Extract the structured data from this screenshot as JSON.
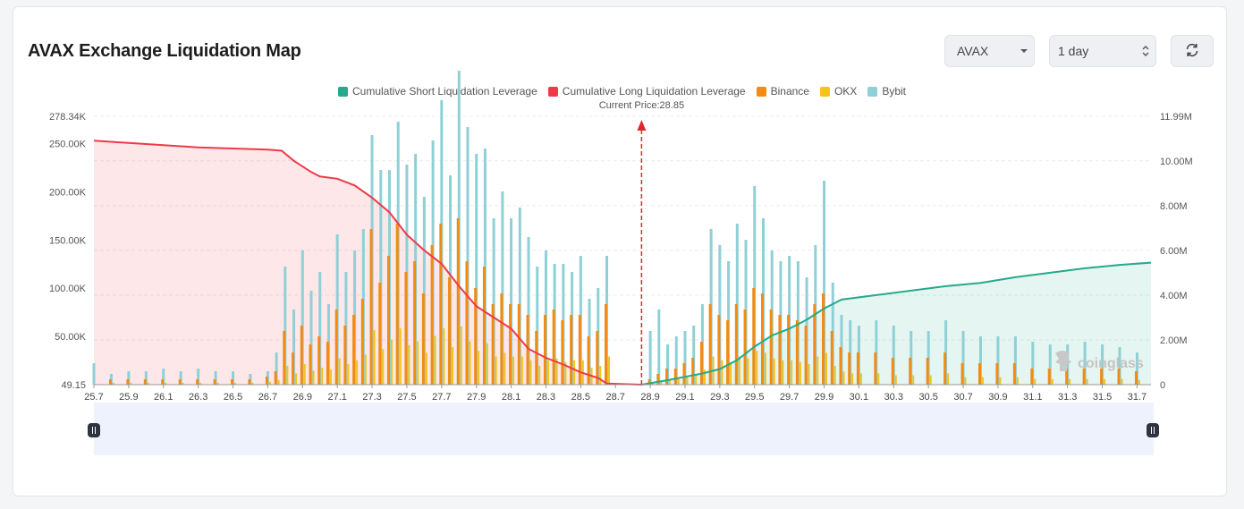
{
  "header": {
    "title": "AVAX Exchange Liquidation Map",
    "coin_select": "AVAX",
    "timeframe_select": "1 day",
    "refresh_icon": "refresh-icon",
    "coin_caret_icon": "caret-down-icon",
    "time_caret_icon": "up-down-chevron-icon"
  },
  "watermark": "coinglass",
  "colors": {
    "short": "#26a98c",
    "long": "#ee3a47",
    "binance": "#f38b12",
    "okx": "#f2c41c",
    "bybit": "#8fd0d6",
    "current_price": "#e0262f"
  },
  "chart_data": {
    "type": "bar",
    "title": "",
    "legend": [
      {
        "key": "short",
        "label": "Cumulative Short Liquidation Leverage"
      },
      {
        "key": "long",
        "label": "Cumulative Long Liquidation Leverage"
      },
      {
        "key": "binance",
        "label": "Binance"
      },
      {
        "key": "okx",
        "label": "OKX"
      },
      {
        "key": "bybit",
        "label": "Bybit"
      }
    ],
    "legend_position": "top-center",
    "current_price": 28.85,
    "current_price_label": "Current Price:28.85",
    "x_range": [
      25.7,
      31.78
    ],
    "x_ticks": [
      "25.7",
      "25.9",
      "26.1",
      "26.3",
      "26.5",
      "26.7",
      "26.9",
      "27.1",
      "27.3",
      "27.5",
      "27.7",
      "27.9",
      "28.1",
      "28.3",
      "28.5",
      "28.7",
      "28.9",
      "29.1",
      "29.3",
      "29.5",
      "29.7",
      "29.9",
      "30.1",
      "30.3",
      "30.5",
      "30.7",
      "30.9",
      "31.1",
      "31.3",
      "31.5",
      "31.7"
    ],
    "y_left_range": [
      49.15,
      278340
    ],
    "y_left_ticks": [
      {
        "v": 278340,
        "label": "278.34K"
      },
      {
        "v": 250000,
        "label": "250.00K"
      },
      {
        "v": 200000,
        "label": "200.00K"
      },
      {
        "v": 150000,
        "label": "150.00K"
      },
      {
        "v": 100000,
        "label": "100.00K"
      },
      {
        "v": 50000,
        "label": "50.00K"
      },
      {
        "v": 49.15,
        "label": "49.15"
      }
    ],
    "y_right_range": [
      0,
      11990000
    ],
    "y_right_ticks": [
      {
        "v": 11990000,
        "label": "11.99M"
      },
      {
        "v": 10000000,
        "label": "10.00M"
      },
      {
        "v": 8000000,
        "label": "8.00M"
      },
      {
        "v": 6000000,
        "label": "6.00M"
      },
      {
        "v": 4000000,
        "label": "4.00M"
      },
      {
        "v": 2000000,
        "label": "2.00M"
      },
      {
        "v": 0,
        "label": "0"
      }
    ],
    "grid": true,
    "cumulative_long": [
      [
        25.7,
        10.9
      ],
      [
        25.9,
        10.8
      ],
      [
        26.1,
        10.7
      ],
      [
        26.3,
        10.6
      ],
      [
        26.5,
        10.55
      ],
      [
        26.7,
        10.5
      ],
      [
        26.78,
        10.45
      ],
      [
        26.85,
        10.0
      ],
      [
        26.95,
        9.5
      ],
      [
        27.0,
        9.3
      ],
      [
        27.1,
        9.2
      ],
      [
        27.2,
        8.9
      ],
      [
        27.3,
        8.35
      ],
      [
        27.4,
        7.7
      ],
      [
        27.5,
        6.7
      ],
      [
        27.6,
        6.0
      ],
      [
        27.7,
        5.4
      ],
      [
        27.8,
        4.4
      ],
      [
        27.9,
        3.5
      ],
      [
        28.0,
        3.0
      ],
      [
        28.1,
        2.5
      ],
      [
        28.2,
        1.6
      ],
      [
        28.3,
        1.2
      ],
      [
        28.4,
        0.9
      ],
      [
        28.5,
        0.55
      ],
      [
        28.6,
        0.3
      ],
      [
        28.65,
        0.05
      ],
      [
        28.85,
        0.0
      ]
    ],
    "cumulative_short": [
      [
        28.85,
        0.0
      ],
      [
        29.0,
        0.2
      ],
      [
        29.1,
        0.35
      ],
      [
        29.2,
        0.5
      ],
      [
        29.3,
        0.7
      ],
      [
        29.4,
        1.1
      ],
      [
        29.5,
        1.7
      ],
      [
        29.6,
        2.2
      ],
      [
        29.7,
        2.5
      ],
      [
        29.8,
        2.9
      ],
      [
        29.9,
        3.4
      ],
      [
        30.0,
        3.8
      ],
      [
        30.2,
        4.0
      ],
      [
        30.4,
        4.2
      ],
      [
        30.6,
        4.4
      ],
      [
        30.8,
        4.55
      ],
      [
        31.0,
        4.8
      ],
      [
        31.2,
        5.0
      ],
      [
        31.4,
        5.2
      ],
      [
        31.6,
        5.35
      ],
      [
        31.78,
        5.45
      ]
    ],
    "exchange_bars": [
      [
        25.7,
        0.0,
        0.08
      ],
      [
        25.8,
        0.02,
        0.04
      ],
      [
        25.9,
        0.02,
        0.05
      ],
      [
        26.0,
        0.02,
        0.05
      ],
      [
        26.1,
        0.02,
        0.06
      ],
      [
        26.2,
        0.02,
        0.05
      ],
      [
        26.3,
        0.02,
        0.06
      ],
      [
        26.4,
        0.02,
        0.05
      ],
      [
        26.5,
        0.02,
        0.05
      ],
      [
        26.6,
        0.02,
        0.04
      ],
      [
        26.7,
        0.03,
        0.05
      ],
      [
        26.75,
        0.05,
        0.12
      ],
      [
        26.8,
        0.2,
        0.44
      ],
      [
        26.85,
        0.12,
        0.28
      ],
      [
        26.9,
        0.22,
        0.5
      ],
      [
        26.95,
        0.15,
        0.35
      ],
      [
        27.0,
        0.18,
        0.42
      ],
      [
        27.05,
        0.16,
        0.3
      ],
      [
        27.1,
        0.28,
        0.56
      ],
      [
        27.15,
        0.22,
        0.42
      ],
      [
        27.2,
        0.26,
        0.5
      ],
      [
        27.25,
        0.32,
        0.58
      ],
      [
        27.3,
        0.58,
        0.93
      ],
      [
        27.35,
        0.38,
        0.8
      ],
      [
        27.4,
        0.48,
        0.8
      ],
      [
        27.45,
        0.6,
        0.98
      ],
      [
        27.5,
        0.42,
        0.82
      ],
      [
        27.55,
        0.46,
        0.86
      ],
      [
        27.6,
        0.34,
        0.7
      ],
      [
        27.65,
        0.52,
        0.91
      ],
      [
        27.7,
        0.6,
        1.06
      ],
      [
        27.75,
        0.4,
        0.78
      ],
      [
        27.8,
        0.62,
        1.17
      ],
      [
        27.85,
        0.46,
        0.96
      ],
      [
        27.9,
        0.36,
        0.86
      ],
      [
        27.95,
        0.44,
        0.88
      ],
      [
        28.0,
        0.3,
        0.62
      ],
      [
        28.05,
        0.34,
        0.72
      ],
      [
        28.1,
        0.3,
        0.62
      ],
      [
        28.15,
        0.3,
        0.66
      ],
      [
        28.2,
        0.26,
        0.55
      ],
      [
        28.25,
        0.2,
        0.44
      ],
      [
        28.3,
        0.26,
        0.5
      ],
      [
        28.35,
        0.28,
        0.45
      ],
      [
        28.4,
        0.24,
        0.45
      ],
      [
        28.45,
        0.26,
        0.42
      ],
      [
        28.5,
        0.26,
        0.48
      ],
      [
        28.55,
        0.18,
        0.32
      ],
      [
        28.6,
        0.2,
        0.36
      ],
      [
        28.65,
        0.3,
        0.48
      ],
      [
        28.9,
        0.02,
        0.2
      ],
      [
        28.95,
        0.04,
        0.28
      ],
      [
        29.0,
        0.06,
        0.15
      ],
      [
        29.05,
        0.06,
        0.18
      ],
      [
        29.1,
        0.08,
        0.2
      ],
      [
        29.15,
        0.1,
        0.22
      ],
      [
        29.2,
        0.16,
        0.3
      ],
      [
        29.25,
        0.3,
        0.58
      ],
      [
        29.3,
        0.26,
        0.52
      ],
      [
        29.35,
        0.24,
        0.46
      ],
      [
        29.4,
        0.3,
        0.6
      ],
      [
        29.45,
        0.28,
        0.54
      ],
      [
        29.5,
        0.36,
        0.74
      ],
      [
        29.55,
        0.34,
        0.62
      ],
      [
        29.6,
        0.28,
        0.5
      ],
      [
        29.65,
        0.26,
        0.46
      ],
      [
        29.7,
        0.26,
        0.48
      ],
      [
        29.75,
        0.24,
        0.46
      ],
      [
        29.8,
        0.22,
        0.4
      ],
      [
        29.85,
        0.3,
        0.52
      ],
      [
        29.9,
        0.34,
        0.76
      ],
      [
        29.95,
        0.2,
        0.38
      ],
      [
        30.0,
        0.14,
        0.26
      ],
      [
        30.05,
        0.12,
        0.24
      ],
      [
        30.1,
        0.12,
        0.22
      ],
      [
        30.2,
        0.12,
        0.24
      ],
      [
        30.3,
        0.1,
        0.22
      ],
      [
        30.4,
        0.1,
        0.2
      ],
      [
        30.5,
        0.1,
        0.2
      ],
      [
        30.6,
        0.12,
        0.24
      ],
      [
        30.7,
        0.08,
        0.2
      ],
      [
        30.8,
        0.08,
        0.18
      ],
      [
        30.9,
        0.08,
        0.18
      ],
      [
        31.0,
        0.08,
        0.18
      ],
      [
        31.1,
        0.06,
        0.16
      ],
      [
        31.2,
        0.06,
        0.15
      ],
      [
        31.3,
        0.06,
        0.15
      ],
      [
        31.4,
        0.06,
        0.16
      ],
      [
        31.5,
        0.06,
        0.15
      ],
      [
        31.6,
        0.06,
        0.14
      ],
      [
        31.7,
        0.05,
        0.12
      ]
    ],
    "exchange_bars_note_units": "[price, binance_share_of_left_axis_max, total_share_of_left_axis_max]"
  },
  "slider": {
    "left_handle_icon": "drag-handle-icon",
    "right_handle_icon": "drag-handle-icon"
  }
}
